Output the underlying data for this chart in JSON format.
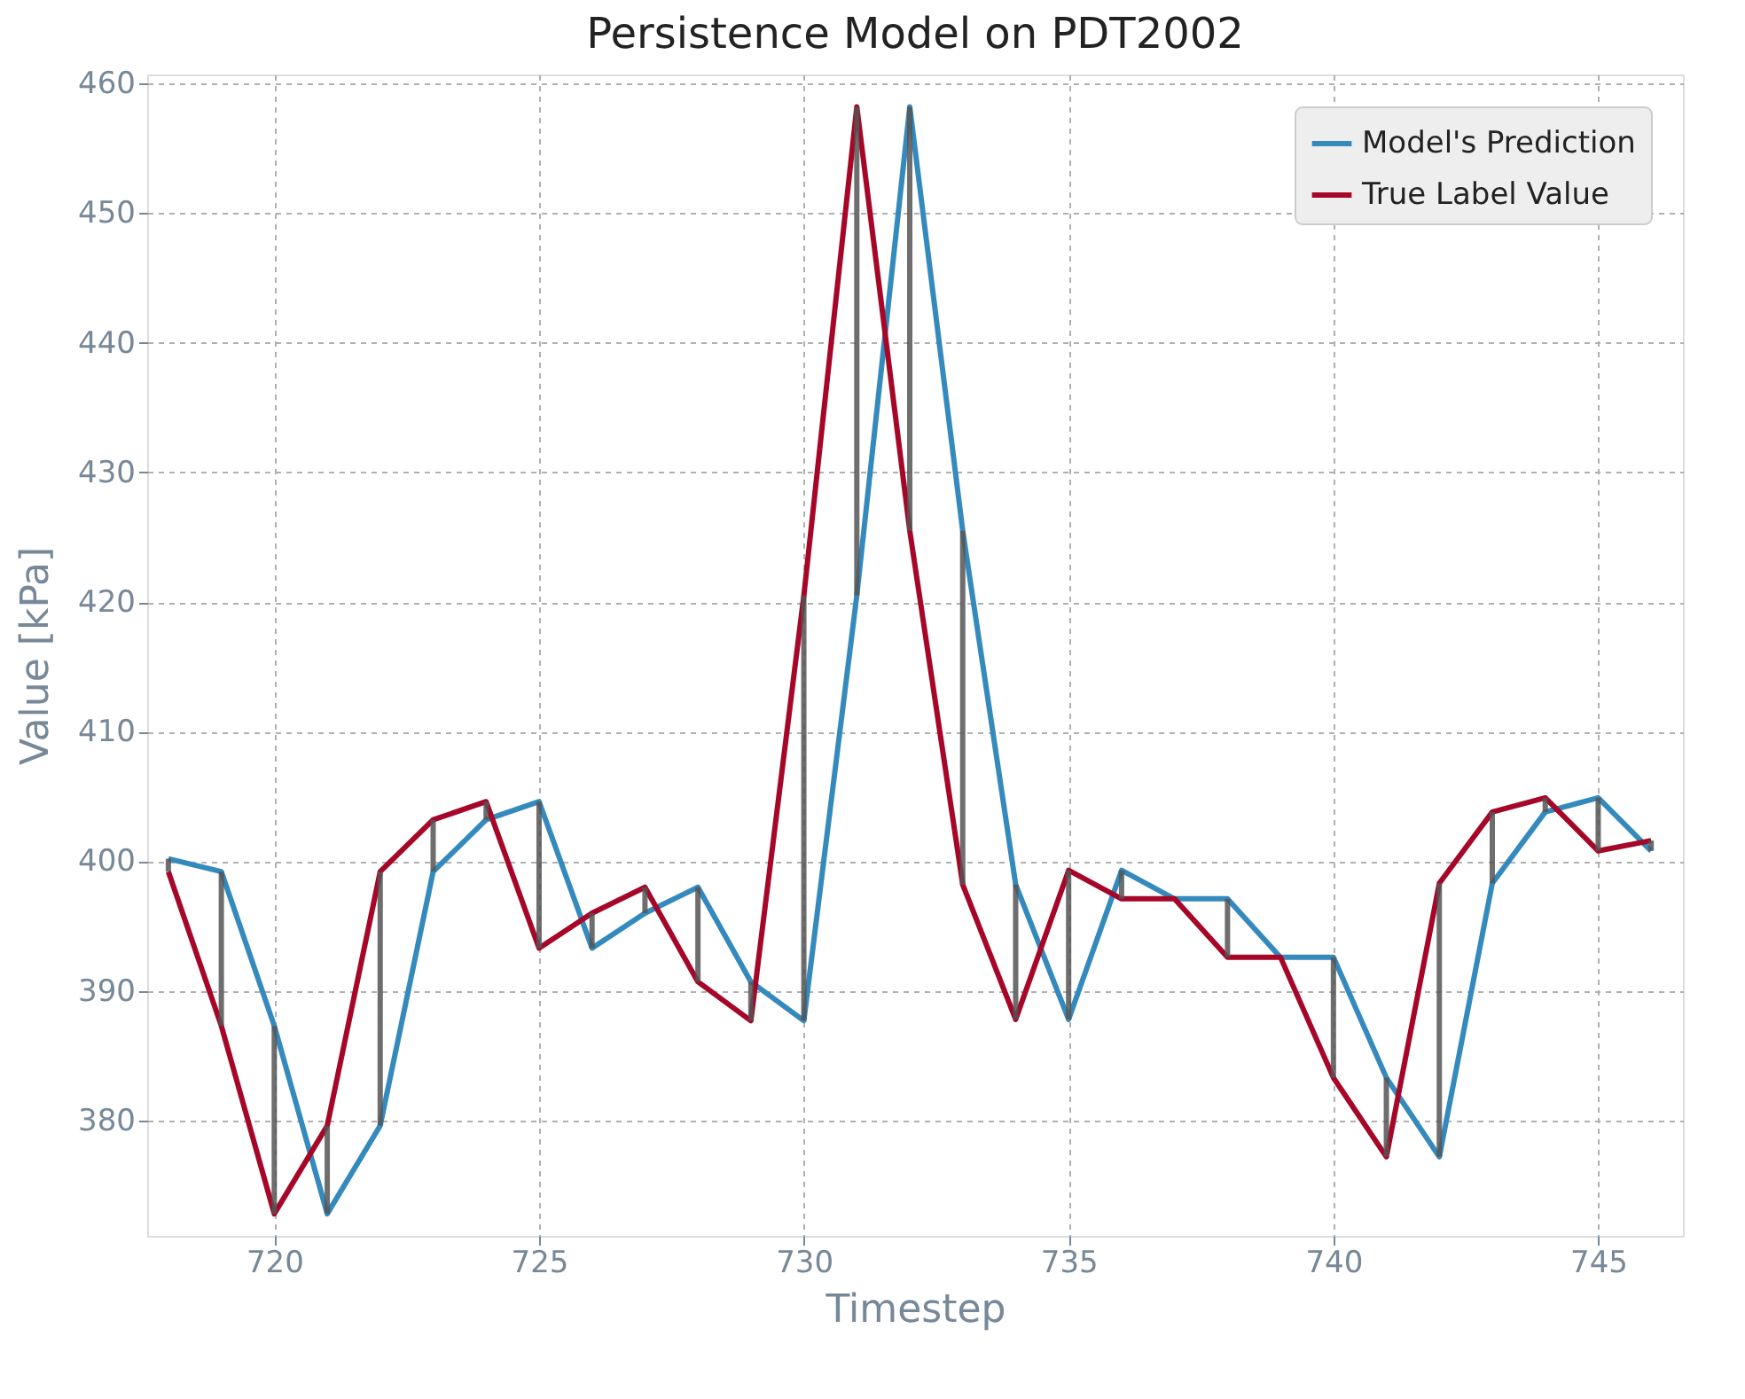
{
  "chart_data": {
    "type": "line",
    "title": "Persistence Model on PDT2002",
    "xlabel": "Timestep",
    "ylabel": "Value [kPa]",
    "x": [
      718,
      719,
      720,
      721,
      722,
      723,
      724,
      725,
      726,
      727,
      728,
      729,
      730,
      731,
      732,
      733,
      734,
      735,
      736,
      737,
      738,
      739,
      740,
      741,
      742,
      743,
      744,
      745,
      746
    ],
    "series": [
      {
        "name": "Model's Prediction",
        "color": "#348abd",
        "values": [
          400.2,
          399.2,
          387.3,
          372.8,
          379.6,
          399.2,
          403.2,
          404.6,
          393.3,
          396.0,
          398.0,
          390.7,
          387.7,
          420.5,
          458.2,
          425.5,
          398.2,
          387.8,
          399.3,
          397.1,
          397.1,
          392.6,
          392.6,
          383.3,
          377.2,
          398.3,
          403.8,
          404.9,
          400.8
        ],
        "errors": [
          [
            399.2,
            400.2
          ],
          [
            387.3,
            399.2
          ],
          [
            372.8,
            387.3
          ],
          [
            372.8,
            379.6
          ],
          [
            379.6,
            399.2
          ],
          [
            399.2,
            403.2
          ],
          [
            403.2,
            404.6
          ],
          [
            393.3,
            404.6
          ],
          [
            393.3,
            396.0
          ],
          [
            396.0,
            398.0
          ],
          [
            390.7,
            398.0
          ],
          [
            387.7,
            390.7
          ],
          [
            387.7,
            420.5
          ],
          [
            420.5,
            458.2
          ],
          [
            425.5,
            458.2
          ],
          [
            398.2,
            425.5
          ],
          [
            387.8,
            398.2
          ],
          [
            387.8,
            399.3
          ],
          [
            397.1,
            399.3
          ],
          [
            397.1,
            397.1
          ],
          [
            392.6,
            397.1
          ],
          [
            392.6,
            392.6
          ],
          [
            383.3,
            392.6
          ],
          [
            377.2,
            383.3
          ],
          [
            377.2,
            398.3
          ],
          [
            398.3,
            403.8
          ],
          [
            403.8,
            404.9
          ],
          [
            400.8,
            404.9
          ],
          [
            400.8,
            401.6
          ]
        ]
      },
      {
        "name": "True Label Value",
        "color": "#a60628",
        "values": [
          399.2,
          387.3,
          372.8,
          379.6,
          399.2,
          403.2,
          404.6,
          393.3,
          396.0,
          398.0,
          390.7,
          387.7,
          420.5,
          458.2,
          425.5,
          398.2,
          387.8,
          399.3,
          397.1,
          397.1,
          392.6,
          392.6,
          383.3,
          377.2,
          398.3,
          403.8,
          404.9,
          400.8,
          401.6
        ]
      }
    ],
    "xlim": [
      717.6,
      746.6
    ],
    "xticks": [
      720,
      725,
      730,
      735,
      740,
      745
    ],
    "ylim": [
      371.1,
      460.7
    ],
    "yticks": [
      380,
      390,
      400,
      410,
      420,
      430,
      440,
      450,
      460
    ],
    "grid": true,
    "legend": "top right",
    "marker": "none",
    "line_style": "solid"
  }
}
